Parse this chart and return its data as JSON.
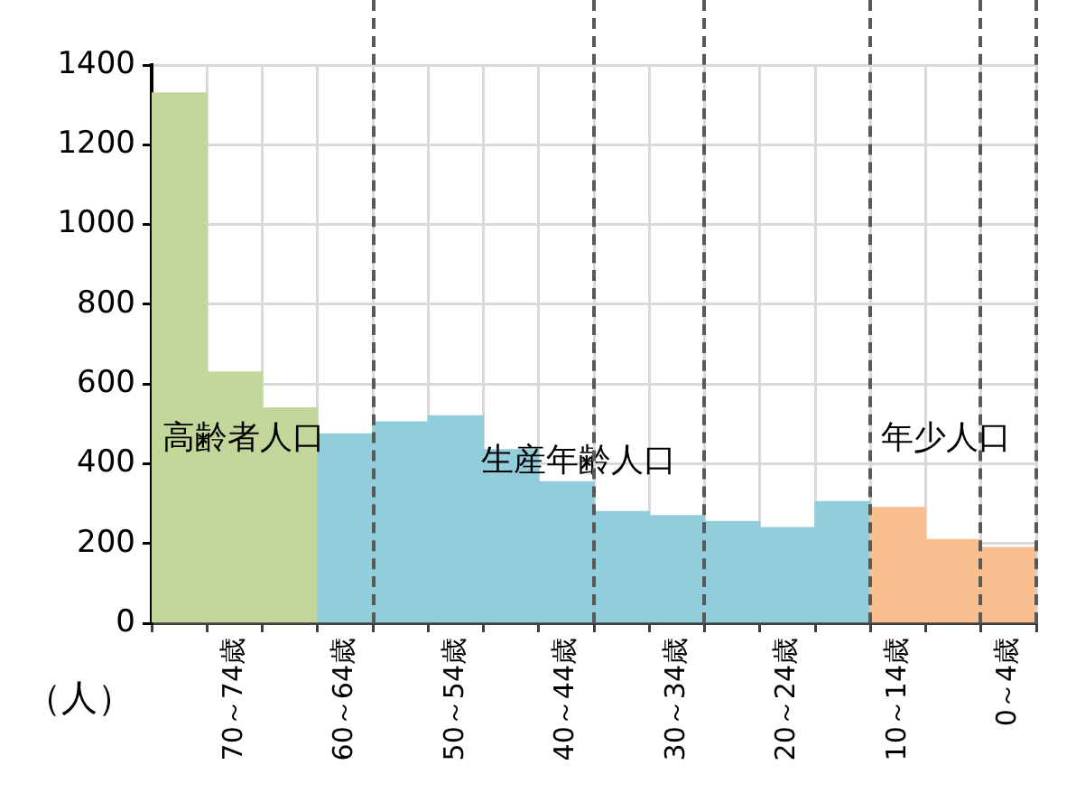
{
  "chart_data": {
    "type": "bar",
    "ylabel": "（人）",
    "categories": [
      null,
      "70～74歳",
      null,
      "60～64歳",
      null,
      "50～54歳",
      null,
      "40～44歳",
      null,
      "30～34歳",
      null,
      "20～24歳",
      null,
      "10～14歳",
      null,
      "0～4歳"
    ],
    "values": [
      1330,
      630,
      540,
      475,
      505,
      520,
      435,
      355,
      280,
      270,
      255,
      240,
      305,
      290,
      210,
      190
    ],
    "colors": [
      "#c4d79b",
      "#c4d79b",
      "#c4d79b",
      "#92cddc",
      "#92cddc",
      "#92cddc",
      "#92cddc",
      "#92cddc",
      "#92cddc",
      "#92cddc",
      "#92cddc",
      "#92cddc",
      "#92cddc",
      "#fabf8f",
      "#fabf8f",
      "#fabf8f"
    ],
    "ylim": [
      0,
      1400
    ],
    "yticks": [
      0,
      200,
      400,
      600,
      800,
      1000,
      1200,
      1400
    ],
    "annotations": [
      "高齢者人口",
      "生産年齢人口",
      "年少人口"
    ],
    "grid": true,
    "legend": false
  }
}
